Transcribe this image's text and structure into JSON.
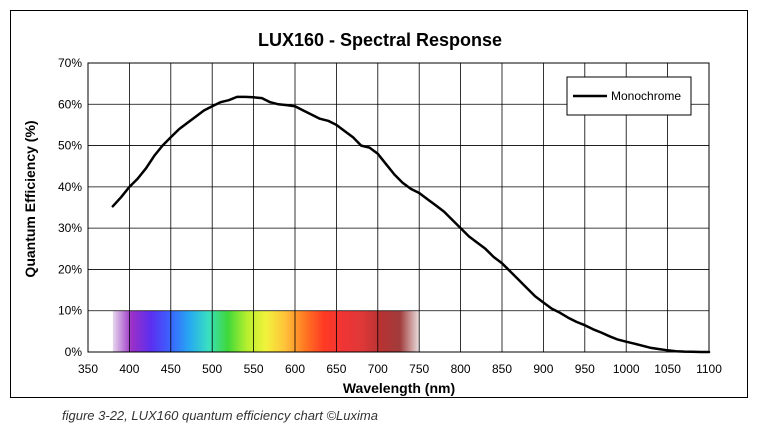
{
  "caption": "figure 3-22, LUX160 quantum efficiency chart ©Luxima",
  "chart_data": {
    "type": "line",
    "title": "LUX160 - Spectral Response",
    "xlabel": "Wavelength (nm)",
    "ylabel": "Quantum Efficiency (%)",
    "xlim": [
      350,
      1100
    ],
    "ylim": [
      0,
      70
    ],
    "xticks": [
      "350",
      "400",
      "450",
      "500",
      "550",
      "600",
      "650",
      "700",
      "750",
      "800",
      "850",
      "900",
      "950",
      "1000",
      "1050",
      "1100"
    ],
    "yticks": [
      "0%",
      "10%",
      "20%",
      "30%",
      "40%",
      "50%",
      "60%",
      "70%"
    ],
    "grid": true,
    "legend_position": "top-right",
    "series": [
      {
        "name": "Monochrome",
        "color": "#000000",
        "x": [
          380,
          390,
          400,
          410,
          420,
          430,
          440,
          450,
          460,
          470,
          480,
          490,
          500,
          510,
          520,
          530,
          540,
          550,
          560,
          570,
          580,
          590,
          600,
          610,
          620,
          630,
          640,
          650,
          660,
          670,
          680,
          690,
          700,
          710,
          720,
          730,
          740,
          750,
          760,
          770,
          780,
          790,
          800,
          810,
          820,
          830,
          840,
          850,
          860,
          870,
          880,
          890,
          900,
          910,
          920,
          930,
          940,
          950,
          960,
          970,
          980,
          990,
          1000,
          1010,
          1020,
          1030,
          1040,
          1050,
          1060,
          1070,
          1080,
          1090,
          1100
        ],
        "y": [
          35.3,
          37.5,
          40.0,
          42.0,
          44.5,
          47.5,
          50.0,
          52.0,
          54.0,
          55.5,
          57.0,
          58.5,
          59.5,
          60.5,
          61.0,
          61.8,
          61.8,
          61.7,
          61.5,
          60.5,
          60.0,
          59.8,
          59.5,
          58.5,
          57.5,
          56.5,
          56.0,
          55.0,
          53.5,
          52.0,
          50.0,
          49.5,
          48.0,
          45.5,
          43.0,
          41.0,
          39.5,
          38.5,
          37.0,
          35.5,
          34.0,
          32.0,
          30.0,
          28.0,
          26.5,
          25.0,
          23.0,
          21.5,
          19.5,
          17.5,
          15.5,
          13.5,
          12.0,
          10.5,
          9.5,
          8.3,
          7.3,
          6.5,
          5.5,
          4.7,
          3.8,
          3.0,
          2.5,
          2.0,
          1.5,
          1.0,
          0.7,
          0.4,
          0.2,
          0.1,
          0.05,
          0.0,
          0.0
        ]
      }
    ],
    "spectrum_band": {
      "x_range": [
        380,
        750
      ],
      "y_range": [
        0,
        10
      ],
      "colors": [
        "#e6d8ec",
        "#9a2fc8",
        "#5b2ff0",
        "#3b63ff",
        "#27a8f2",
        "#39e0c0",
        "#3fd83a",
        "#b5ef2e",
        "#f2f23c",
        "#ffc23a",
        "#ff7a22",
        "#ff3b24",
        "#f03434",
        "#df3838",
        "#b83232",
        "#a13c3c",
        "#eadede"
      ]
    }
  }
}
